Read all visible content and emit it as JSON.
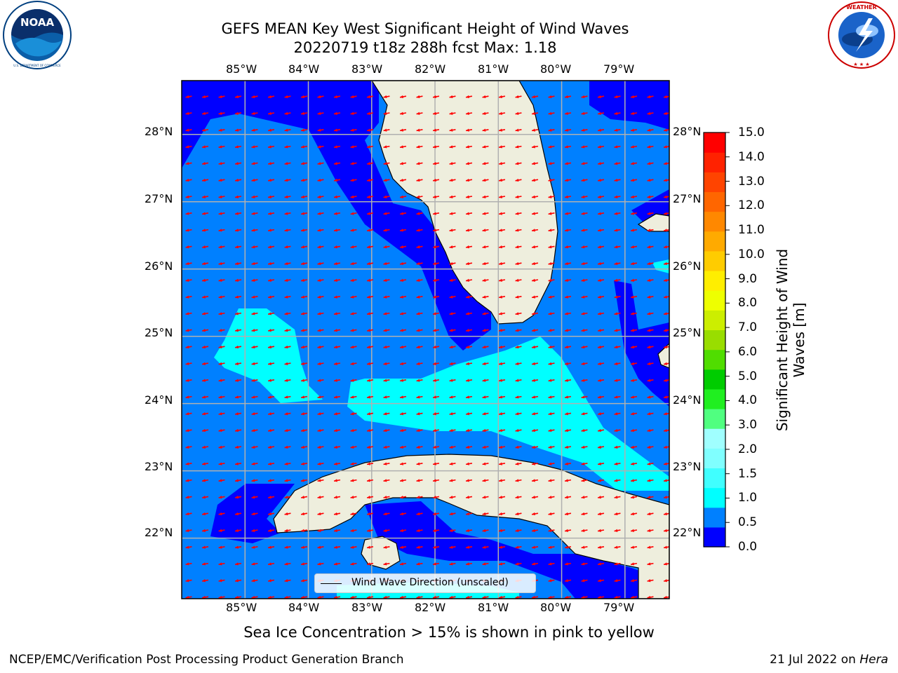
{
  "title": {
    "line1": "GEFS MEAN Key West Significant Height of Wind Waves",
    "line2": "20220719 t18z 288h fcst   Max: 1.18"
  },
  "logos": {
    "left": "NOAA",
    "right": "NATIONAL WEATHER SERVICE"
  },
  "map": {
    "lon_ticks": [
      "85°W",
      "84°W",
      "83°W",
      "82°W",
      "81°W",
      "80°W",
      "79°W"
    ],
    "lat_ticks": [
      "28°N",
      "27°N",
      "26°N",
      "25°N",
      "24°N",
      "23°N",
      "22°N"
    ],
    "lon_range": [
      -86,
      -78.3
    ],
    "lat_range": [
      21.1,
      28.8
    ],
    "legend_label": "Wind Wave Direction (unscaled)",
    "arrow_color": "#ff0000",
    "land_color": "#eeeedd"
  },
  "colorbar": {
    "label": "Significant Height of Wind Waves [m]",
    "label_line1": "Significant Height of Wind",
    "label_line2": "Waves [m]",
    "ticks": [
      "15.0",
      "14.0",
      "13.0",
      "12.0",
      "11.0",
      "10.0",
      "9.0",
      "8.0",
      "7.0",
      "6.0",
      "5.0",
      "4.0",
      "3.0",
      "2.0",
      "1.5",
      "1.0",
      "0.5",
      "0.0"
    ],
    "colors": [
      "#0000ff",
      "#0080ff",
      "#00ffff",
      "#40ffff",
      "#80ffff",
      "#a0ffff",
      "#50ff80",
      "#20ef20",
      "#00cc00",
      "#50dd00",
      "#99dd00",
      "#ccee00",
      "#eeff00",
      "#ffee00",
      "#ffcc00",
      "#ffaa00",
      "#ff8800",
      "#ff6600",
      "#ff4400",
      "#ff2200",
      "#ff0000"
    ]
  },
  "notes": {
    "sea_ice": "Sea Ice Concentration > 15% is shown in pink to yellow",
    "footer_left": "NCEP/EMC/Verification Post Processing Product Generation Branch",
    "footer_date": "21 Jul 2022 on ",
    "footer_host": "Hera"
  }
}
